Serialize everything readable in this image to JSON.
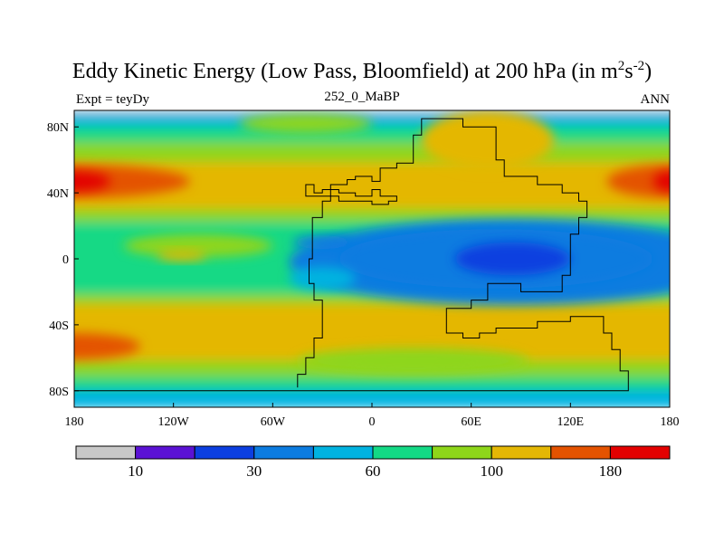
{
  "chart_data": {
    "type": "heatmap",
    "title": {
      "main": "Eddy Kinetic Energy (Low Pass, Bloomfield) at 200 hPa (in m",
      "sup1": "2",
      "mid": "s",
      "sup2": "-2",
      "end": ")"
    },
    "subtitle_left": "Expt = teyDy",
    "subtitle_center": "252_0_MaBP",
    "subtitle_right": "ANN",
    "xlim": [
      -180,
      180
    ],
    "ylim": [
      -90,
      90
    ],
    "x_ticks": [
      {
        "value": -180,
        "label": "180"
      },
      {
        "value": -120,
        "label": "120W"
      },
      {
        "value": -60,
        "label": "60W"
      },
      {
        "value": 0,
        "label": "0"
      },
      {
        "value": 60,
        "label": "60E"
      },
      {
        "value": 120,
        "label": "120E"
      },
      {
        "value": 180,
        "label": "180"
      }
    ],
    "y_ticks": [
      {
        "value": 80,
        "label": "80N"
      },
      {
        "value": 40,
        "label": "40N"
      },
      {
        "value": 0,
        "label": "0"
      },
      {
        "value": -40,
        "label": "40S"
      },
      {
        "value": -80,
        "label": "80S"
      }
    ],
    "zonal_bands": [
      {
        "lat_top": 90,
        "lat_bottom": 88,
        "value": 5
      },
      {
        "lat_top": 88,
        "lat_bottom": 80,
        "value": 50
      },
      {
        "lat_top": 80,
        "lat_bottom": 70,
        "value": 70
      },
      {
        "lat_top": 70,
        "lat_bottom": 58,
        "value": 90
      },
      {
        "lat_top": 58,
        "lat_bottom": 30,
        "value": 120
      },
      {
        "lat_top": 30,
        "lat_bottom": 22,
        "value": 90
      },
      {
        "lat_top": 22,
        "lat_bottom": 14,
        "value": 70
      },
      {
        "lat_top": 14,
        "lat_bottom": -12,
        "value": 60
      },
      {
        "lat_top": -12,
        "lat_bottom": -22,
        "value": 70
      },
      {
        "lat_top": -22,
        "lat_bottom": -28,
        "value": 90
      },
      {
        "lat_top": -28,
        "lat_bottom": -62,
        "value": 120
      },
      {
        "lat_top": -62,
        "lat_bottom": -72,
        "value": 90
      },
      {
        "lat_top": -72,
        "lat_bottom": -80,
        "value": 70
      },
      {
        "lat_top": -80,
        "lat_bottom": -90,
        "value": 50
      }
    ],
    "blobs": [
      {
        "lon": -180,
        "lat": 47,
        "rlon": 70,
        "rlat": 10,
        "value": 160
      },
      {
        "lon": -180,
        "lat": 47,
        "rlon": 22,
        "rlat": 6,
        "value": 200
      },
      {
        "lon": 180,
        "lat": 47,
        "rlon": 38,
        "rlat": 10,
        "value": 160
      },
      {
        "lon": 180,
        "lat": 47,
        "rlon": 10,
        "rlat": 6,
        "value": 200
      },
      {
        "lon": -180,
        "lat": -53,
        "rlon": 40,
        "rlat": 8,
        "value": 160
      },
      {
        "lon": 70,
        "lat": 72,
        "rlon": 40,
        "rlat": 18,
        "value": 100
      },
      {
        "lon": -40,
        "lat": 82,
        "rlon": 40,
        "rlat": 6,
        "value": 90
      },
      {
        "lon": 25,
        "lat": -62,
        "rlon": 70,
        "rlat": 8,
        "value": 90
      },
      {
        "lon": -105,
        "lat": 8,
        "rlon": 45,
        "rlat": 7,
        "value": 90
      },
      {
        "lon": -115,
        "lat": 2,
        "rlon": 15,
        "rlat": 3,
        "value": 120
      },
      {
        "lon": 85,
        "lat": -2,
        "rlon": 135,
        "rlat": 26,
        "value": 40
      },
      {
        "lon": 75,
        "lat": 0,
        "rlon": 95,
        "rlat": 18,
        "value": 30
      },
      {
        "lon": 85,
        "lat": 0,
        "rlon": 35,
        "rlat": 10,
        "value": 20
      },
      {
        "lon": -30,
        "lat": 10,
        "rlon": 18,
        "rlat": 4,
        "value": 30
      },
      {
        "lon": -30,
        "lat": -12,
        "rlon": 20,
        "rlat": 7,
        "value": 50
      }
    ],
    "continent_outline": [
      [
        -45,
        -78
      ],
      [
        -45,
        -70
      ],
      [
        -40,
        -70
      ],
      [
        -40,
        -60
      ],
      [
        -35,
        -60
      ],
      [
        -35,
        -48
      ],
      [
        -30,
        -48
      ],
      [
        -30,
        -25
      ],
      [
        -35,
        -25
      ],
      [
        -35,
        -15
      ],
      [
        -38,
        -15
      ],
      [
        -38,
        0
      ],
      [
        -36,
        0
      ],
      [
        -36,
        25
      ],
      [
        -30,
        25
      ],
      [
        -30,
        35
      ],
      [
        -25,
        35
      ],
      [
        -25,
        45
      ],
      [
        -15,
        45
      ],
      [
        -15,
        48
      ],
      [
        -10,
        48
      ],
      [
        -10,
        50
      ],
      [
        0,
        50
      ],
      [
        0,
        47
      ],
      [
        5,
        47
      ],
      [
        5,
        55
      ],
      [
        15,
        55
      ],
      [
        15,
        58
      ],
      [
        25,
        58
      ],
      [
        25,
        75
      ],
      [
        30,
        75
      ],
      [
        30,
        85
      ],
      [
        55,
        85
      ],
      [
        55,
        80
      ],
      [
        75,
        80
      ],
      [
        75,
        60
      ],
      [
        80,
        60
      ],
      [
        80,
        50
      ],
      [
        100,
        50
      ],
      [
        100,
        45
      ],
      [
        115,
        45
      ],
      [
        115,
        40
      ],
      [
        125,
        40
      ],
      [
        125,
        35
      ],
      [
        130,
        35
      ],
      [
        130,
        25
      ],
      [
        125,
        25
      ],
      [
        125,
        15
      ],
      [
        120,
        15
      ],
      [
        120,
        -10
      ],
      [
        115,
        -10
      ],
      [
        115,
        -20
      ],
      [
        90,
        -20
      ],
      [
        90,
        -15
      ],
      [
        70,
        -15
      ],
      [
        70,
        -25
      ],
      [
        60,
        -25
      ],
      [
        60,
        -30
      ],
      [
        45,
        -30
      ],
      [
        45,
        -45
      ],
      [
        55,
        -45
      ],
      [
        55,
        -48
      ],
      [
        65,
        -48
      ],
      [
        65,
        -45
      ],
      [
        75,
        -45
      ],
      [
        75,
        -42
      ],
      [
        100,
        -42
      ],
      [
        100,
        -38
      ],
      [
        120,
        -38
      ],
      [
        120,
        -35
      ],
      [
        140,
        -35
      ],
      [
        140,
        -45
      ],
      [
        145,
        -45
      ],
      [
        145,
        -55
      ],
      [
        150,
        -55
      ],
      [
        150,
        -68
      ],
      [
        155,
        -68
      ],
      [
        155,
        -80
      ],
      [
        -180,
        -80
      ]
    ],
    "inland_sea": [
      [
        -40,
        40
      ],
      [
        -40,
        45
      ],
      [
        -35,
        45
      ],
      [
        -35,
        40
      ],
      [
        -30,
        40
      ],
      [
        -30,
        42
      ],
      [
        -20,
        42
      ],
      [
        -20,
        40
      ],
      [
        -10,
        40
      ],
      [
        -10,
        38
      ],
      [
        0,
        38
      ],
      [
        0,
        42
      ],
      [
        5,
        42
      ],
      [
        5,
        38
      ],
      [
        15,
        38
      ],
      [
        15,
        35
      ],
      [
        10,
        35
      ],
      [
        10,
        33
      ],
      [
        0,
        33
      ],
      [
        0,
        35
      ],
      [
        -20,
        35
      ],
      [
        -20,
        38
      ],
      [
        -40,
        38
      ],
      [
        -40,
        40
      ]
    ],
    "colorbar": {
      "levels": [
        0,
        10,
        20,
        30,
        45,
        60,
        80,
        100,
        140,
        180
      ],
      "colors": [
        "#c8c8c8",
        "#5b12d4",
        "#0c3fe0",
        "#0c7ce0",
        "#00b3e0",
        "#13d985",
        "#8ed61a",
        "#e4b705",
        "#e45300",
        "#e30000"
      ],
      "labels": [
        {
          "boundary": 1,
          "text": "10"
        },
        {
          "boundary": 3,
          "text": "30"
        },
        {
          "boundary": 5,
          "text": "60"
        },
        {
          "boundary": 7,
          "text": "100"
        },
        {
          "boundary": 9,
          "text": "180"
        }
      ]
    }
  }
}
